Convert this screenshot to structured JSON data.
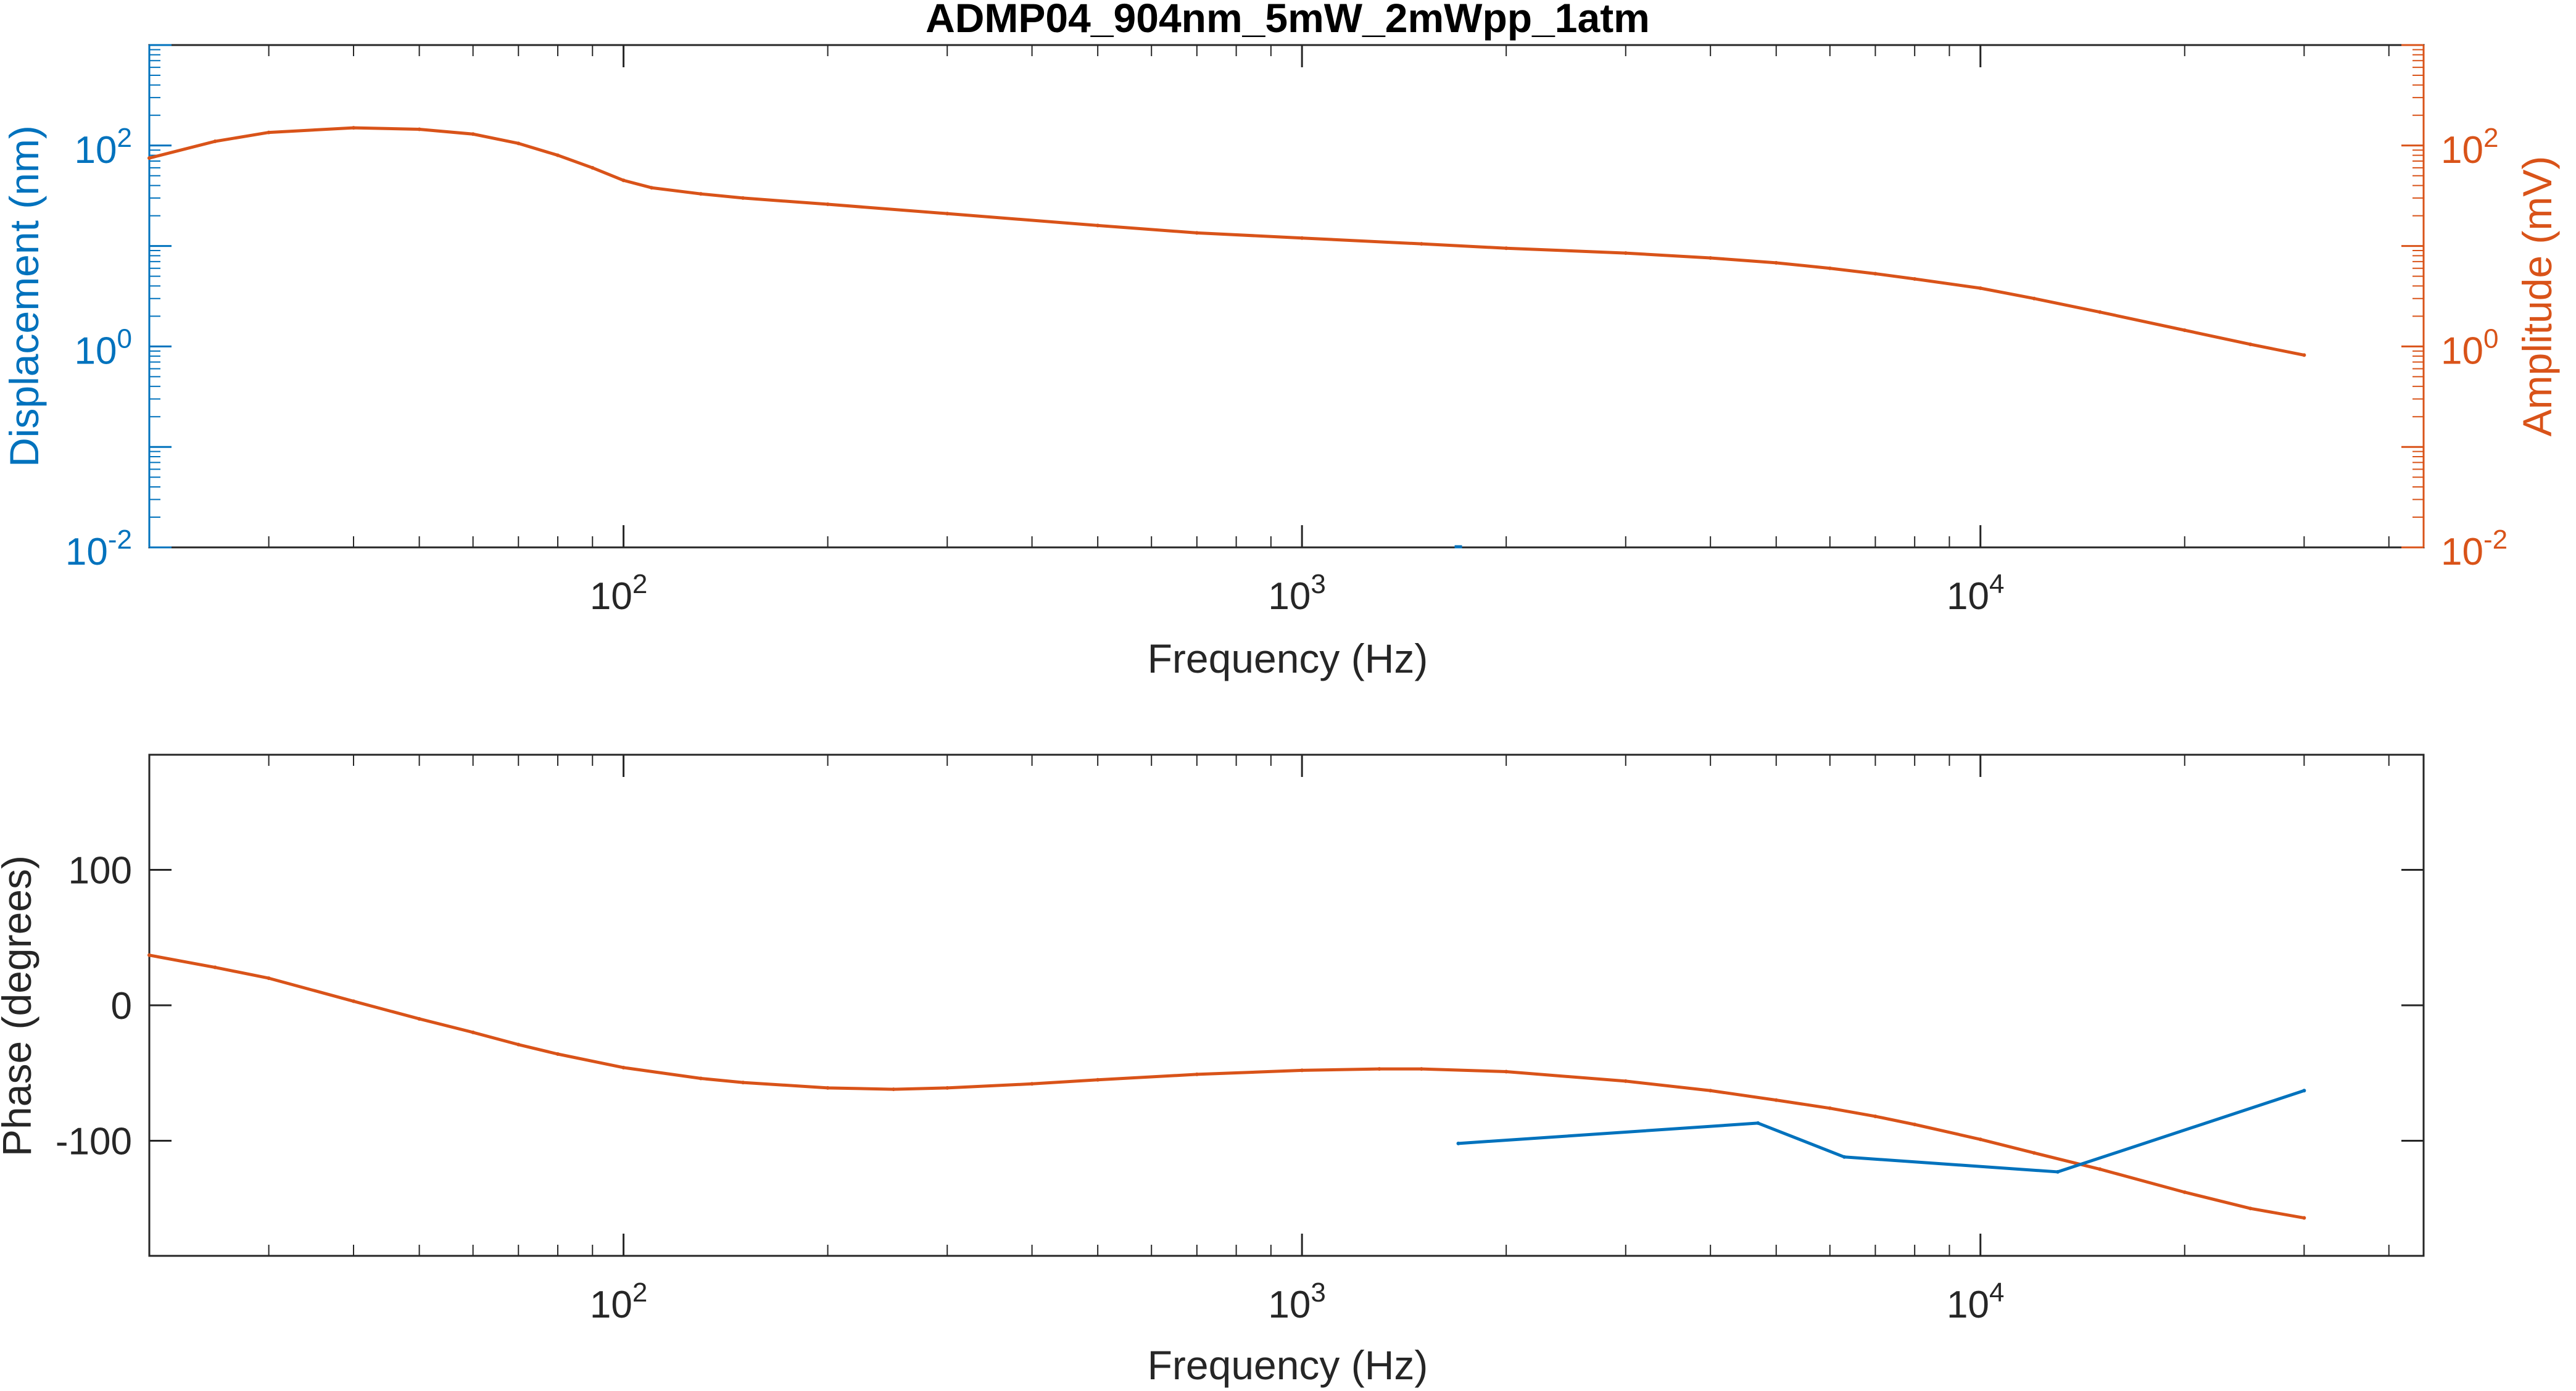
{
  "colors": {
    "blue": "#0072BD",
    "orange": "#D95319",
    "axis": "#262626"
  },
  "chart_data": [
    {
      "type": "line",
      "title": "ADMP04_904nm_5mW_2mWpp_1atm",
      "xlabel": "Frequency (Hz)",
      "ylabel_left": "Displacement (nm)",
      "ylabel_right": "Amplitude (mV)",
      "xscale": "log",
      "yscale_left": "log",
      "yscale_right": "log",
      "xlim": [
        20,
        45000
      ],
      "ylim_left": [
        0.01,
        1000
      ],
      "ylim_right": [
        0.01,
        1000
      ],
      "x_ticks": [
        "10^2",
        "10^3",
        "10^4"
      ],
      "y_ticks_left": [
        "10^-2",
        "10^0",
        "10^2"
      ],
      "y_ticks_right": [
        "10^-2",
        "10^0",
        "10^2"
      ],
      "grid": false,
      "series": [
        {
          "axis": "right",
          "color": "#D95319",
          "x": [
            20,
            25,
            30,
            40,
            50,
            60,
            70,
            80,
            90,
            100,
            110,
            130,
            150,
            200,
            300,
            500,
            700,
            1000,
            1500,
            2000,
            3000,
            4000,
            5000,
            6000,
            7000,
            8000,
            10000,
            12000,
            15000,
            20000,
            25000,
            30000
          ],
          "y": [
            75,
            110,
            135,
            150,
            145,
            130,
            105,
            80,
            60,
            45,
            38,
            33,
            30,
            26,
            21,
            16,
            13.5,
            12,
            10.5,
            9.5,
            8.5,
            7.6,
            6.8,
            6.0,
            5.3,
            4.7,
            3.8,
            3.0,
            2.2,
            1.45,
            1.05,
            0.82
          ]
        },
        {
          "axis": "left",
          "color": "#0072BD",
          "x": [
            1700
          ],
          "y": [
            0.01
          ]
        }
      ]
    },
    {
      "type": "line",
      "title": "",
      "xlabel": "Frequency (Hz)",
      "ylabel": "Phase (degrees)",
      "xscale": "log",
      "xlim": [
        20,
        45000
      ],
      "ylim": [
        -185,
        185
      ],
      "x_ticks": [
        "10^2",
        "10^3",
        "10^4"
      ],
      "y_ticks": [
        100,
        0,
        -100
      ],
      "grid": false,
      "series": [
        {
          "color": "#D95319",
          "x": [
            20,
            25,
            30,
            40,
            50,
            60,
            70,
            80,
            100,
            130,
            150,
            200,
            250,
            300,
            400,
            500,
            700,
            1000,
            1300,
            1500,
            2000,
            3000,
            4000,
            5000,
            6000,
            7000,
            8000,
            10000,
            12000,
            15000,
            20000,
            25000,
            30000
          ],
          "y": [
            37,
            28,
            20,
            3,
            -10,
            -20,
            -29,
            -36,
            -46,
            -54,
            -57,
            -61,
            -62,
            -61,
            -58,
            -55,
            -51,
            -48,
            -47,
            -47,
            -49,
            -56,
            -63,
            -70,
            -76,
            -82,
            -88,
            -99,
            -109,
            -121,
            -138,
            -150,
            -157
          ]
        },
        {
          "color": "#0072BD",
          "x": [
            1700,
            4700,
            6300,
            13000,
            30000
          ],
          "y": [
            -102,
            -87,
            -112,
            -123,
            -63
          ]
        }
      ]
    }
  ]
}
